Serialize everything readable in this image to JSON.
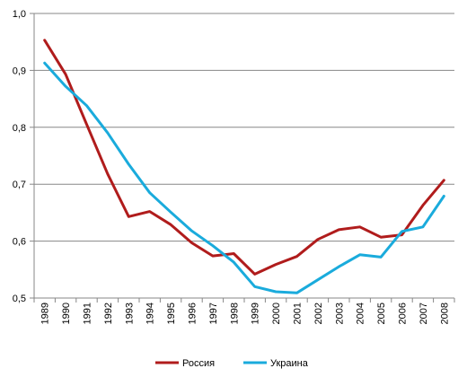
{
  "chart_data": {
    "type": "line",
    "title": "",
    "xlabel": "",
    "ylabel": "",
    "categories": [
      "1989",
      "1990",
      "1991",
      "1992",
      "1993",
      "1994",
      "1995",
      "1996",
      "1997",
      "1998",
      "1999",
      "2000",
      "2001",
      "2002",
      "2003",
      "2004",
      "2005",
      "2006",
      "2007",
      "2008"
    ],
    "ylim": [
      0.5,
      1.0
    ],
    "yticks": [
      "0,5",
      "0,6",
      "0,7",
      "0,8",
      "0,9",
      "1,0"
    ],
    "grid": true,
    "legend_position": "bottom",
    "series": [
      {
        "name": "Россия",
        "color": "#B01C1C",
        "values": [
          0.953,
          0.893,
          0.805,
          0.718,
          0.643,
          0.652,
          0.629,
          0.597,
          0.574,
          0.578,
          0.542,
          0.559,
          0.573,
          0.603,
          0.62,
          0.625,
          0.607,
          0.611,
          0.663,
          0.707
        ]
      },
      {
        "name": "Украина",
        "color": "#1AABDC",
        "values": [
          0.913,
          0.872,
          0.838,
          0.79,
          0.735,
          0.685,
          0.651,
          0.618,
          0.592,
          0.563,
          0.52,
          0.511,
          0.509,
          0.532,
          0.555,
          0.576,
          0.572,
          0.617,
          0.625,
          0.679
        ]
      }
    ]
  }
}
